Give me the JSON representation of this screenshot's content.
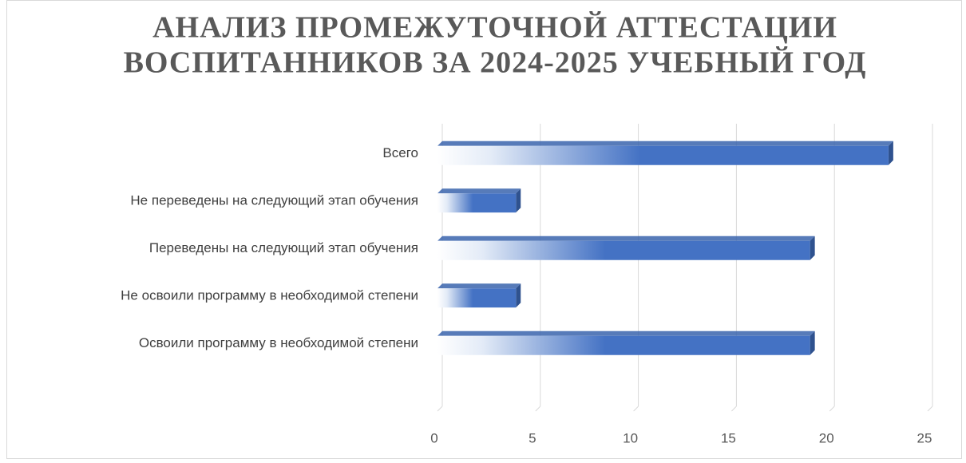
{
  "chart_data": {
    "type": "bar",
    "orientation": "horizontal",
    "title": [
      "АНАЛИЗ ПРОМЕЖУТОЧНОЙ АТТЕСТАЦИИ",
      "ВОСПИТАННИКОВ ЗА 2024-2025 УЧЕБНЫЙ ГОД"
    ],
    "categories": [
      "Всего",
      "Не переведены на следующий этап обучения",
      "Переведены на следующий этап обучения",
      "Не освоили программу в необходимой степени",
      "Освоили программу в необходимой степени"
    ],
    "values": [
      23,
      4,
      19,
      4,
      19
    ],
    "color": "#4472c4",
    "xlim": [
      0,
      25
    ],
    "xticks": [
      0,
      5,
      10,
      15,
      20,
      25
    ],
    "grid": true
  }
}
